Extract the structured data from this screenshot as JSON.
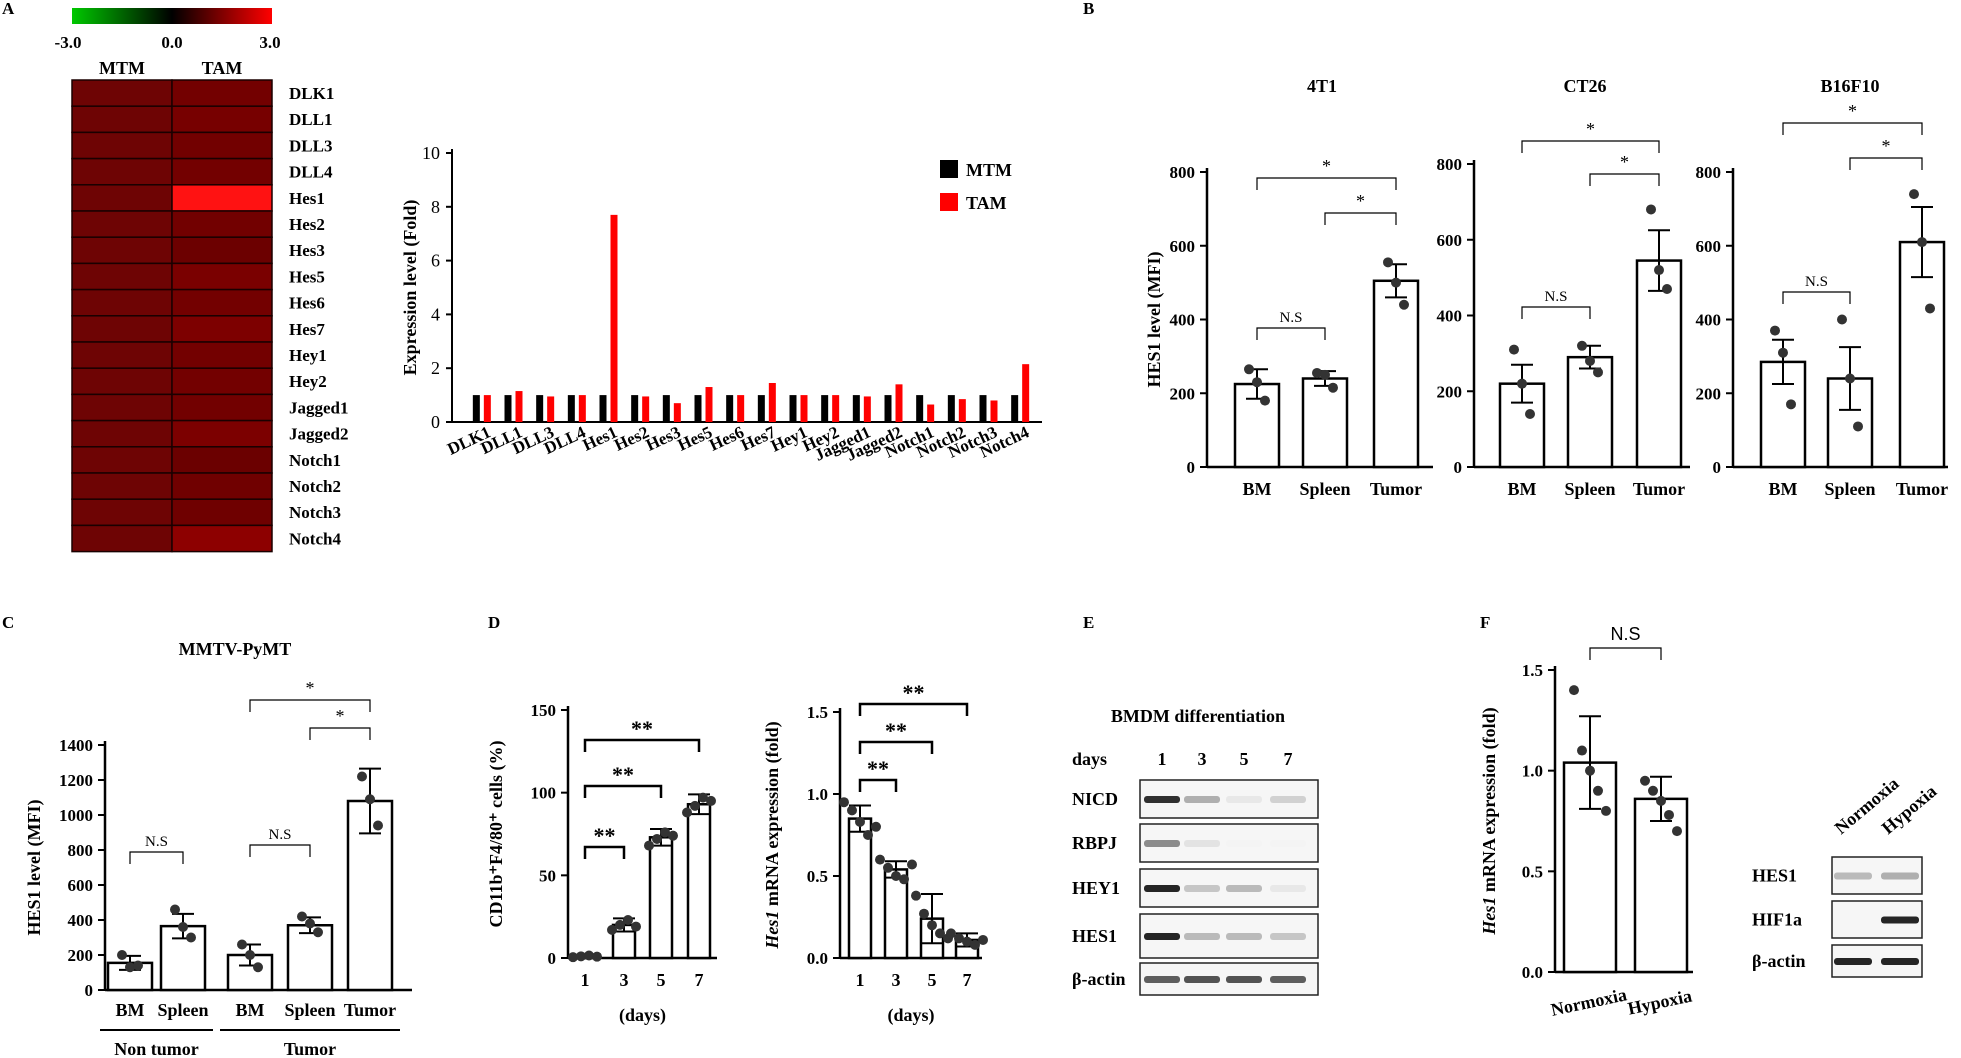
{
  "panels": {
    "A": "A",
    "B": "B",
    "C": "C",
    "D": "D",
    "E": "E",
    "F": "F"
  },
  "chart_data": [
    {
      "id": "A_heatmap",
      "type": "heatmap",
      "colorbar": {
        "min": "-3.0",
        "mid": "0.0",
        "max": "3.0",
        "low_color": "#00c800",
        "mid_color": "#000000",
        "high_color": "#ff0000"
      },
      "columns": [
        "MTM",
        "TAM"
      ],
      "rows": [
        "DLK1",
        "DLL1",
        "DLL3",
        "DLL4",
        "Hes1",
        "Hes2",
        "Hes3",
        "Hes5",
        "Hes6",
        "Hes7",
        "Hey1",
        "Hey2",
        "Jagged1",
        "Jagged2",
        "Notch1",
        "Notch2",
        "Notch3",
        "Notch4"
      ],
      "values": [
        [
          1,
          1
        ],
        [
          1,
          1.15
        ],
        [
          1,
          0.95
        ],
        [
          1,
          1.0
        ],
        [
          1,
          7.7
        ],
        [
          1,
          0.95
        ],
        [
          1,
          0.7
        ],
        [
          1,
          1.3
        ],
        [
          1,
          1.0
        ],
        [
          1,
          1.45
        ],
        [
          1,
          1.0
        ],
        [
          1,
          1.0
        ],
        [
          1,
          0.95
        ],
        [
          1,
          1.4
        ],
        [
          1,
          0.65
        ],
        [
          1,
          0.85
        ],
        [
          1,
          0.8
        ],
        [
          1,
          2.15
        ]
      ]
    },
    {
      "id": "A_bar",
      "type": "bar",
      "ylabel": "Expression level (Fold)",
      "ylim": [
        0,
        10
      ],
      "yticks": [
        "0",
        "2",
        "4",
        "6",
        "8",
        "10"
      ],
      "categories": [
        "DLK1",
        "DLL1",
        "DLL3",
        "DLL4",
        "Hes1",
        "Hes2",
        "Hes3",
        "Hes5",
        "Hes6",
        "Hes7",
        "Hey1",
        "Hey2",
        "Jagged1",
        "Jagged2",
        "Notch1",
        "Notch2",
        "Notch3",
        "Notch4"
      ],
      "series": [
        {
          "name": "MTM",
          "color": "#000000",
          "values": [
            1,
            1,
            1,
            1,
            1,
            1,
            1,
            1,
            1,
            1,
            1,
            1,
            1,
            1,
            1,
            1,
            1,
            1
          ]
        },
        {
          "name": "TAM",
          "color": "#ff0000",
          "values": [
            1,
            1.15,
            0.95,
            1.0,
            7.7,
            0.95,
            0.7,
            1.3,
            1.0,
            1.45,
            1.0,
            1.0,
            0.95,
            1.4,
            0.65,
            0.85,
            0.8,
            2.15
          ]
        }
      ]
    },
    {
      "id": "B_4T1",
      "type": "bar",
      "title": "4T1",
      "ylabel": "HES1 level (MFI)",
      "ylim": [
        0,
        800
      ],
      "yticks": [
        "0",
        "200",
        "400",
        "600",
        "800"
      ],
      "categories": [
        "BM",
        "Spleen",
        "Tumor"
      ],
      "values": [
        225,
        240,
        505
      ],
      "errors": [
        40,
        20,
        45
      ],
      "points": [
        [
          265,
          230,
          180
        ],
        [
          255,
          250,
          215
        ],
        [
          555,
          500,
          440
        ]
      ],
      "brackets": [
        {
          "from": 0,
          "to": 1,
          "label": "N.S"
        },
        {
          "from": 1,
          "to": 2,
          "label": "*"
        },
        {
          "from": 0,
          "to": 2,
          "label": "*"
        }
      ]
    },
    {
      "id": "B_CT26",
      "type": "bar",
      "title": "CT26",
      "ylim": [
        0,
        800
      ],
      "yticks": [
        "0",
        "200",
        "400",
        "600",
        "800"
      ],
      "categories": [
        "BM",
        "Spleen",
        "Tumor"
      ],
      "values": [
        220,
        290,
        545
      ],
      "errors": [
        50,
        30,
        80
      ],
      "points": [
        [
          310,
          220,
          140
        ],
        [
          320,
          280,
          250
        ],
        [
          680,
          520,
          470
        ]
      ],
      "brackets": [
        {
          "from": 0,
          "to": 1,
          "label": "N.S"
        },
        {
          "from": 1,
          "to": 2,
          "label": "*"
        },
        {
          "from": 0,
          "to": 2,
          "label": "*"
        }
      ]
    },
    {
      "id": "B_B16F10",
      "type": "bar",
      "title": "B16F10",
      "ylim": [
        0,
        800
      ],
      "yticks": [
        "0",
        "200",
        "400",
        "600",
        "800"
      ],
      "categories": [
        "BM",
        "Spleen",
        "Tumor"
      ],
      "values": [
        285,
        240,
        610
      ],
      "errors": [
        60,
        85,
        95
      ],
      "points": [
        [
          370,
          310,
          170
        ],
        [
          400,
          240,
          110
        ],
        [
          740,
          610,
          430
        ]
      ],
      "brackets": [
        {
          "from": 0,
          "to": 1,
          "label": "N.S"
        },
        {
          "from": 1,
          "to": 2,
          "label": "*"
        },
        {
          "from": 0,
          "to": 2,
          "label": "*"
        }
      ]
    },
    {
      "id": "C_MMTV",
      "type": "bar",
      "title": "MMTV-PyMT",
      "ylabel": "HES1 level (MFI)",
      "ylim": [
        0,
        1400
      ],
      "yticks": [
        "0",
        "200",
        "400",
        "600",
        "800",
        "1000",
        "1200",
        "1400"
      ],
      "categories": [
        "BM",
        "Spleen",
        "BM",
        "Spleen",
        "Tumor"
      ],
      "groups": [
        {
          "label": "Non tumor",
          "from": 0,
          "to": 1
        },
        {
          "label": "Tumor",
          "from": 2,
          "to": 4
        }
      ],
      "values": [
        155,
        365,
        200,
        370,
        1080
      ],
      "errors": [
        40,
        70,
        60,
        45,
        185
      ],
      "points": [
        [
          200,
          130,
          140
        ],
        [
          460,
          360,
          300
        ],
        [
          260,
          200,
          130
        ],
        [
          420,
          380,
          330
        ],
        [
          1220,
          1090,
          940
        ]
      ],
      "brackets": [
        {
          "from": 0,
          "to": 1,
          "label": "N.S"
        },
        {
          "from": 2,
          "to": 3,
          "label": "N.S"
        },
        {
          "from": 3,
          "to": 4,
          "label": "*"
        },
        {
          "from": 2,
          "to": 4,
          "label": "*"
        }
      ]
    },
    {
      "id": "D_cells",
      "type": "bar",
      "ylabel": "CD11b⁺F4/80⁺ cells (%)",
      "xlabel": "(days)",
      "ylim": [
        0,
        150
      ],
      "yticks": [
        "0",
        "50",
        "100",
        "150"
      ],
      "categories": [
        "1",
        "3",
        "5",
        "7"
      ],
      "values": [
        1,
        20,
        73,
        93
      ],
      "errors": [
        1,
        4,
        5,
        6
      ],
      "points": [
        [
          0.5,
          1,
          1.5,
          0.8
        ],
        [
          17,
          20,
          23,
          19
        ],
        [
          68,
          72,
          76,
          74
        ],
        [
          88,
          92,
          97,
          95
        ]
      ],
      "brackets": [
        {
          "from": 0,
          "to": 1,
          "label": "**"
        },
        {
          "from": 0,
          "to": 2,
          "label": "**"
        },
        {
          "from": 0,
          "to": 3,
          "label": "**"
        }
      ]
    },
    {
      "id": "D_hes1",
      "type": "bar",
      "ylabel": "Hes1 mRNA expression (fold)",
      "ylabel_italic": "Hes1",
      "ylabel_rest": " mRNA expression (fold)",
      "xlabel": "(days)",
      "ylim": [
        0,
        1.5
      ],
      "yticks": [
        "0.0",
        "0.5",
        "1.0",
        "1.5"
      ],
      "categories": [
        "1",
        "3",
        "5",
        "7"
      ],
      "values": [
        0.85,
        0.54,
        0.24,
        0.11
      ],
      "errors": [
        0.08,
        0.05,
        0.15,
        0.04
      ],
      "points": [
        [
          0.95,
          0.9,
          0.83,
          0.75,
          0.8
        ],
        [
          0.6,
          0.55,
          0.5,
          0.48,
          0.57
        ],
        [
          0.38,
          0.27,
          0.2,
          0.15,
          0.12
        ],
        [
          0.15,
          0.12,
          0.1,
          0.08,
          0.11
        ]
      ],
      "brackets": [
        {
          "from": 0,
          "to": 1,
          "label": "**"
        },
        {
          "from": 0,
          "to": 2,
          "label": "**"
        },
        {
          "from": 0,
          "to": 3,
          "label": "**"
        }
      ]
    },
    {
      "id": "F_hes1",
      "type": "bar",
      "ylabel": "Hes1 mRNA expression (fold)",
      "ylabel_italic": "Hes1",
      "ylabel_rest": " mRNA expression (fold)",
      "ylim": [
        0,
        1.5
      ],
      "yticks": [
        "0.0",
        "0.5",
        "1.0",
        "1.5"
      ],
      "categories": [
        "Normoxia",
        "Hypoxia"
      ],
      "values": [
        1.04,
        0.86
      ],
      "errors": [
        0.23,
        0.11
      ],
      "points": [
        [
          1.4,
          1.1,
          1.0,
          0.9,
          0.8
        ],
        [
          0.95,
          0.9,
          0.85,
          0.78,
          0.7
        ]
      ],
      "brackets": [
        {
          "from": 0,
          "to": 1,
          "label": "N.S"
        }
      ]
    }
  ],
  "blot_E": {
    "title": "BMDM differentiation",
    "lanes_label": "days",
    "lanes": [
      "1",
      "3",
      "5",
      "7"
    ],
    "rows": [
      {
        "label": "NICD",
        "intensities": [
          0.9,
          0.35,
          0.1,
          0.2
        ]
      },
      {
        "label": "RBPJ",
        "intensities": [
          0.5,
          0.12,
          0.05,
          0.05
        ]
      },
      {
        "label": "HEY1",
        "intensities": [
          0.95,
          0.25,
          0.3,
          0.1
        ]
      },
      {
        "label": "HES1",
        "intensities": [
          0.95,
          0.3,
          0.3,
          0.25
        ]
      },
      {
        "label": "β-actin",
        "intensities": [
          0.7,
          0.75,
          0.75,
          0.7
        ]
      }
    ]
  },
  "blot_F": {
    "lanes": [
      "Normoxia",
      "Hypoxia"
    ],
    "rows": [
      {
        "label": "HES1",
        "intensities": [
          0.3,
          0.35
        ]
      },
      {
        "label": "HIF1a",
        "intensities": [
          0.0,
          0.95
        ]
      },
      {
        "label": "β-actin",
        "intensities": [
          0.95,
          0.95
        ]
      }
    ]
  }
}
